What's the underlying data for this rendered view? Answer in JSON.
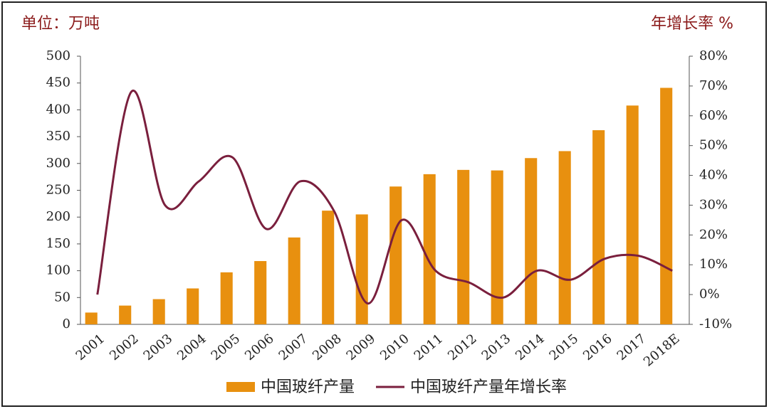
{
  "chart_data": {
    "type": "bar",
    "ylabel": "单位：万吨",
    "y2label": "年增长率 %",
    "categories": [
      "2001",
      "2002",
      "2003",
      "2004",
      "2005",
      "2006",
      "2007",
      "2008",
      "2009",
      "2010",
      "2011",
      "2012",
      "2013",
      "2014",
      "2015",
      "2016",
      "2017",
      "2018E"
    ],
    "series": [
      {
        "name": "中国玻纤产量",
        "type": "bar",
        "color": "#e8900f",
        "values": [
          22,
          35,
          47,
          67,
          97,
          118,
          162,
          212,
          205,
          257,
          280,
          288,
          287,
          310,
          323,
          362,
          408,
          441
        ]
      },
      {
        "name": "中国玻纤产量年增长率",
        "type": "line",
        "axis": "y2",
        "color": "#7a1f3d",
        "values": [
          0,
          68,
          30,
          38,
          46,
          22,
          38,
          28,
          -3,
          25,
          8,
          4,
          -1,
          8,
          5,
          12,
          13,
          8
        ]
      }
    ],
    "ylim": [
      0,
      500
    ],
    "yticks": [
      0,
      50,
      100,
      150,
      200,
      250,
      300,
      350,
      400,
      450,
      500
    ],
    "y2lim": [
      -10,
      80
    ],
    "y2ticks": [
      {
        "value": -10,
        "label": "-10%"
      },
      {
        "value": 0,
        "label": "0%"
      },
      {
        "value": 10,
        "label": "10%"
      },
      {
        "value": 20,
        "label": "20%"
      },
      {
        "value": 30,
        "label": "30%"
      },
      {
        "value": 40,
        "label": "40%"
      },
      {
        "value": 50,
        "label": "50%"
      },
      {
        "value": 60,
        "label": "60%"
      },
      {
        "value": 70,
        "label": "70%"
      },
      {
        "value": 80,
        "label": "80%"
      }
    ],
    "grid": false,
    "legend": "bottom"
  }
}
